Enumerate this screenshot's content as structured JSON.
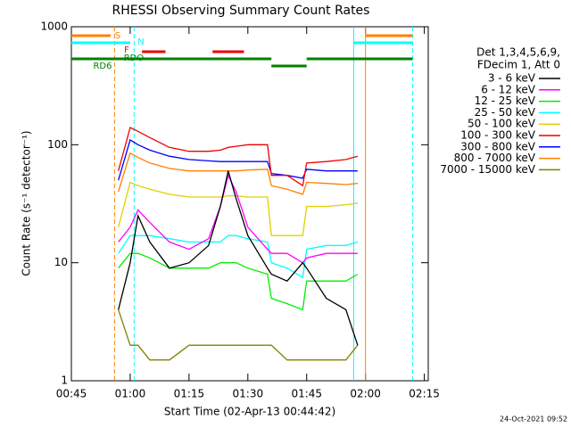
{
  "chart_data": {
    "type": "line",
    "title": "RHESSI Observing Summary Count Rates",
    "x_label": "Start Time (02-Apr-13 00:44:42)",
    "y_label": "Count Rate (s⁻¹ detector⁻¹)",
    "legend_header": [
      "Det 1,3,4,5,6,9,",
      "FDecim 1, Att 0"
    ],
    "footer": "24-Oct-2021 09:52",
    "log_y": true,
    "xlim": [
      "00:45",
      "02:16"
    ],
    "xticks": [
      "00:45",
      "01:00",
      "01:15",
      "01:30",
      "01:45",
      "02:00",
      "02:15"
    ],
    "ylim": [
      1,
      1000
    ],
    "yticks": [
      1,
      10,
      100,
      1000
    ],
    "x": [
      "00:57",
      "01:00",
      "01:02",
      "01:05",
      "01:10",
      "01:15",
      "01:20",
      "01:23",
      "01:25",
      "01:27",
      "01:30",
      "01:35",
      "01:36",
      "01:40",
      "01:44",
      "01:45",
      "01:50",
      "01:55",
      "01:58"
    ],
    "series": [
      {
        "name": "3 - 6 keV",
        "color": "#000000",
        "values": [
          4,
          10,
          25,
          15,
          9,
          10,
          14,
          30,
          60,
          35,
          17,
          9,
          8,
          7,
          10,
          9,
          5,
          4,
          2
        ]
      },
      {
        "name": "6 - 12 keV",
        "color": "#ff00ff",
        "values": [
          15,
          20,
          28,
          22,
          15,
          13,
          16,
          30,
          55,
          40,
          20,
          13,
          12,
          12,
          10,
          11,
          12,
          12,
          12
        ]
      },
      {
        "name": "12 - 25 keV",
        "color": "#00ee00",
        "values": [
          9,
          12,
          12,
          11,
          9,
          9,
          9,
          10,
          10,
          10,
          9,
          8,
          5,
          4.5,
          4,
          7,
          7,
          7,
          8
        ]
      },
      {
        "name": "25 - 50 keV",
        "color": "#00ffff",
        "values": [
          12,
          17,
          17,
          17,
          16,
          15,
          15,
          15,
          17,
          17,
          16,
          15,
          10,
          9,
          7.5,
          13,
          14,
          14,
          15
        ]
      },
      {
        "name": "50 - 100 keV",
        "color": "#e0d000",
        "values": [
          20,
          48,
          45,
          42,
          38,
          36,
          36,
          36,
          37,
          37,
          36,
          36,
          17,
          17,
          17,
          30,
          30,
          31,
          32
        ]
      },
      {
        "name": "100 - 300 keV",
        "color": "#ee0000",
        "values": [
          60,
          140,
          130,
          115,
          95,
          88,
          88,
          90,
          95,
          97,
          100,
          100,
          55,
          55,
          45,
          70,
          72,
          75,
          80
        ]
      },
      {
        "name": "300 - 800 keV",
        "color": "#0000ff",
        "values": [
          50,
          110,
          100,
          90,
          80,
          75,
          73,
          72,
          72,
          72,
          72,
          72,
          57,
          55,
          52,
          62,
          60,
          60,
          60
        ]
      },
      {
        "name": "800 - 7000 keV",
        "color": "#ff8000",
        "values": [
          40,
          85,
          78,
          70,
          63,
          60,
          60,
          60,
          60,
          60,
          61,
          62,
          45,
          42,
          38,
          48,
          47,
          46,
          47
        ]
      },
      {
        "name": "7000 - 15000 keV",
        "color": "#808000",
        "values": [
          4,
          2,
          2,
          1.5,
          1.5,
          2,
          2,
          2,
          2,
          2,
          2,
          2,
          2,
          1.5,
          1.5,
          1.5,
          1.5,
          1.5,
          2
        ]
      }
    ],
    "flags": [
      {
        "label": "S",
        "color": "#ff8000",
        "intervals": [
          [
            "00:45",
            "00:55"
          ],
          [
            "02:00",
            "02:12"
          ]
        ]
      },
      {
        "label": "N",
        "color": "#00ffff",
        "intervals": [
          [
            "00:45",
            "01:00"
          ],
          [
            "01:57",
            "02:12"
          ]
        ]
      },
      {
        "label": "F",
        "color": "#ee0000",
        "intervals": [
          [
            "01:03",
            "01:09"
          ],
          [
            "01:21",
            "01:29"
          ]
        ]
      },
      {
        "label": "RDO",
        "color": "#008000",
        "intervals": [
          [
            "00:45",
            "01:36"
          ],
          [
            "01:45",
            "02:12"
          ]
        ]
      },
      {
        "label": "RD6",
        "color": "#008000",
        "intervals": [
          [
            "01:36",
            "01:45"
          ]
        ]
      }
    ],
    "markers": [
      {
        "x": "00:56",
        "color": "#ff8000",
        "dashed": true
      },
      {
        "x": "01:01",
        "color": "#00ffff",
        "dashed": true
      },
      {
        "x": "01:57",
        "color": "#00ffff",
        "dashed": false
      },
      {
        "x": "02:00",
        "color": "#ff8000",
        "dashed": false
      },
      {
        "x": "02:12",
        "color": "#00ffff",
        "dashed": true
      }
    ]
  }
}
